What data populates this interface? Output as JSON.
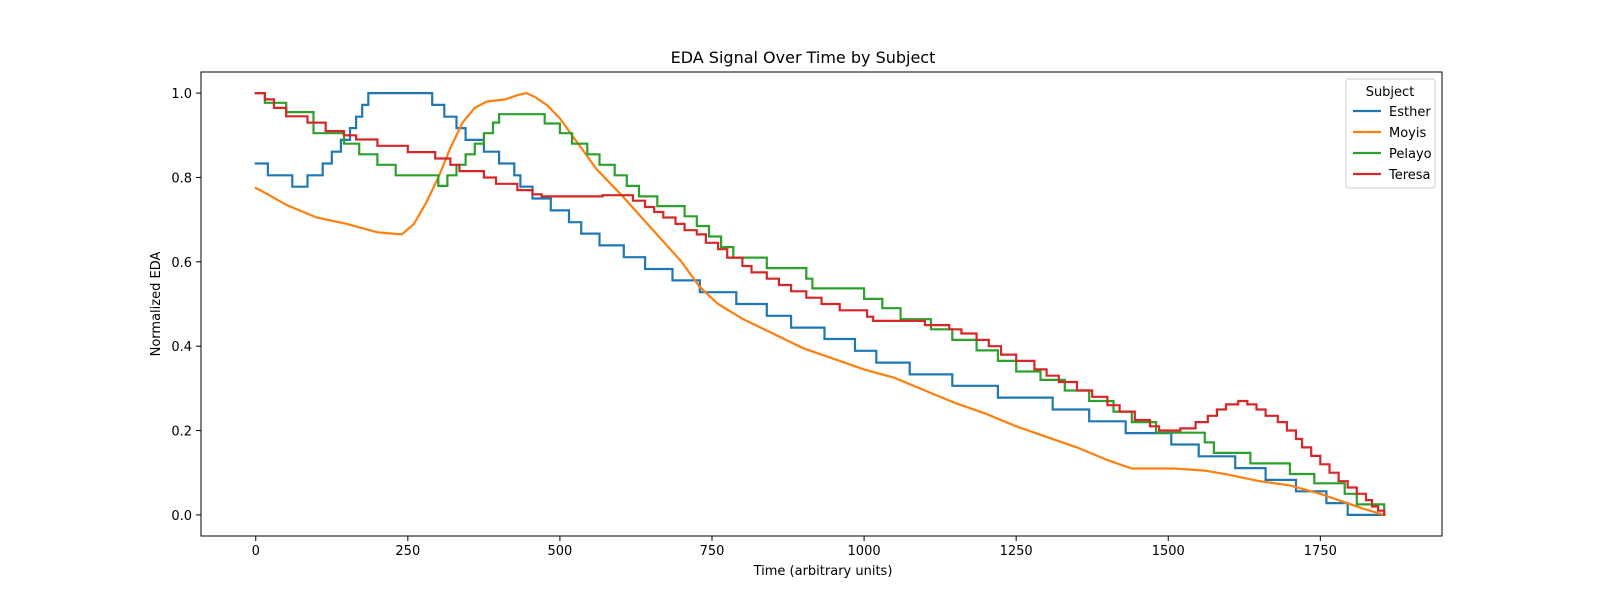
{
  "chart_data": {
    "type": "line",
    "title": "EDA Signal Over Time by Subject",
    "xlabel": "Time (arbitrary units)",
    "ylabel": "Normalized EDA",
    "xlim": [
      -90,
      1950
    ],
    "ylim": [
      -0.05,
      1.05
    ],
    "xticks": [
      0,
      250,
      500,
      750,
      1000,
      1250,
      1500,
      1750
    ],
    "yticks": [
      0.0,
      0.2,
      0.4,
      0.6,
      0.8,
      1.0
    ],
    "xtick_labels": [
      "0",
      "250",
      "500",
      "750",
      "1000",
      "1250",
      "1500",
      "1750"
    ],
    "ytick_labels": [
      "0.0",
      "0.2",
      "0.4",
      "0.6",
      "0.8",
      "1.0"
    ],
    "grid": false,
    "legend": {
      "title": "Subject",
      "placement": "top-right"
    },
    "series": [
      {
        "name": "Esther",
        "color": "#1f77b4",
        "step": true,
        "points": [
          [
            0,
            0.833
          ],
          [
            20,
            0.805
          ],
          [
            60,
            0.778
          ],
          [
            85,
            0.805
          ],
          [
            110,
            0.833
          ],
          [
            125,
            0.861
          ],
          [
            140,
            0.889
          ],
          [
            155,
            0.917
          ],
          [
            165,
            0.944
          ],
          [
            175,
            0.972
          ],
          [
            185,
            1.0
          ],
          [
            290,
            0.972
          ],
          [
            310,
            0.944
          ],
          [
            330,
            0.917
          ],
          [
            345,
            0.889
          ],
          [
            375,
            0.861
          ],
          [
            400,
            0.833
          ],
          [
            425,
            0.805
          ],
          [
            435,
            0.778
          ],
          [
            455,
            0.75
          ],
          [
            485,
            0.722
          ],
          [
            515,
            0.694
          ],
          [
            535,
            0.667
          ],
          [
            565,
            0.639
          ],
          [
            605,
            0.611
          ],
          [
            640,
            0.583
          ],
          [
            685,
            0.556
          ],
          [
            730,
            0.528
          ],
          [
            790,
            0.5
          ],
          [
            840,
            0.472
          ],
          [
            880,
            0.444
          ],
          [
            935,
            0.417
          ],
          [
            985,
            0.389
          ],
          [
            1020,
            0.361
          ],
          [
            1075,
            0.333
          ],
          [
            1145,
            0.306
          ],
          [
            1220,
            0.278
          ],
          [
            1310,
            0.25
          ],
          [
            1370,
            0.222
          ],
          [
            1430,
            0.194
          ],
          [
            1505,
            0.167
          ],
          [
            1550,
            0.139
          ],
          [
            1610,
            0.111
          ],
          [
            1660,
            0.083
          ],
          [
            1710,
            0.056
          ],
          [
            1760,
            0.028
          ],
          [
            1795,
            0.0
          ],
          [
            1855,
            0.0
          ]
        ]
      },
      {
        "name": "Moyis",
        "color": "#ff7f0e",
        "step": false,
        "points": [
          [
            0,
            0.775
          ],
          [
            20,
            0.76
          ],
          [
            50,
            0.735
          ],
          [
            100,
            0.705
          ],
          [
            150,
            0.69
          ],
          [
            200,
            0.67
          ],
          [
            240,
            0.665
          ],
          [
            260,
            0.69
          ],
          [
            280,
            0.74
          ],
          [
            300,
            0.8
          ],
          [
            320,
            0.87
          ],
          [
            340,
            0.93
          ],
          [
            360,
            0.965
          ],
          [
            380,
            0.98
          ],
          [
            410,
            0.985
          ],
          [
            430,
            0.995
          ],
          [
            445,
            1.0
          ],
          [
            460,
            0.99
          ],
          [
            480,
            0.97
          ],
          [
            500,
            0.94
          ],
          [
            520,
            0.9
          ],
          [
            540,
            0.86
          ],
          [
            560,
            0.82
          ],
          [
            600,
            0.76
          ],
          [
            650,
            0.68
          ],
          [
            700,
            0.6
          ],
          [
            730,
            0.54
          ],
          [
            760,
            0.5
          ],
          [
            800,
            0.465
          ],
          [
            850,
            0.43
          ],
          [
            900,
            0.395
          ],
          [
            950,
            0.37
          ],
          [
            1000,
            0.345
          ],
          [
            1050,
            0.325
          ],
          [
            1100,
            0.295
          ],
          [
            1150,
            0.265
          ],
          [
            1200,
            0.24
          ],
          [
            1250,
            0.21
          ],
          [
            1300,
            0.185
          ],
          [
            1350,
            0.16
          ],
          [
            1400,
            0.13
          ],
          [
            1440,
            0.11
          ],
          [
            1510,
            0.11
          ],
          [
            1560,
            0.105
          ],
          [
            1600,
            0.095
          ],
          [
            1650,
            0.08
          ],
          [
            1700,
            0.07
          ],
          [
            1750,
            0.05
          ],
          [
            1790,
            0.03
          ],
          [
            1820,
            0.015
          ],
          [
            1855,
            0.0
          ]
        ]
      },
      {
        "name": "Pelayo",
        "color": "#2ca02c",
        "step": true,
        "points": [
          [
            0,
            1.0
          ],
          [
            15,
            0.977
          ],
          [
            50,
            0.955
          ],
          [
            95,
            0.932
          ],
          [
            95,
            0.905
          ],
          [
            145,
            0.88
          ],
          [
            170,
            0.855
          ],
          [
            200,
            0.83
          ],
          [
            230,
            0.805
          ],
          [
            300,
            0.78
          ],
          [
            315,
            0.805
          ],
          [
            330,
            0.83
          ],
          [
            345,
            0.855
          ],
          [
            360,
            0.88
          ],
          [
            375,
            0.905
          ],
          [
            390,
            0.93
          ],
          [
            400,
            0.95
          ],
          [
            475,
            0.928
          ],
          [
            500,
            0.905
          ],
          [
            520,
            0.88
          ],
          [
            545,
            0.855
          ],
          [
            565,
            0.83
          ],
          [
            590,
            0.805
          ],
          [
            610,
            0.78
          ],
          [
            630,
            0.755
          ],
          [
            660,
            0.732
          ],
          [
            705,
            0.708
          ],
          [
            725,
            0.685
          ],
          [
            745,
            0.66
          ],
          [
            765,
            0.635
          ],
          [
            785,
            0.61
          ],
          [
            840,
            0.585
          ],
          [
            905,
            0.56
          ],
          [
            915,
            0.537
          ],
          [
            1000,
            0.512
          ],
          [
            1030,
            0.49
          ],
          [
            1060,
            0.464
          ],
          [
            1110,
            0.44
          ],
          [
            1145,
            0.415
          ],
          [
            1185,
            0.39
          ],
          [
            1220,
            0.365
          ],
          [
            1250,
            0.34
          ],
          [
            1290,
            0.32
          ],
          [
            1330,
            0.295
          ],
          [
            1370,
            0.27
          ],
          [
            1410,
            0.245
          ],
          [
            1440,
            0.22
          ],
          [
            1480,
            0.195
          ],
          [
            1560,
            0.172
          ],
          [
            1575,
            0.147
          ],
          [
            1635,
            0.122
          ],
          [
            1700,
            0.097
          ],
          [
            1740,
            0.075
          ],
          [
            1790,
            0.05
          ],
          [
            1810,
            0.025
          ],
          [
            1855,
            0.0
          ]
        ]
      },
      {
        "name": "Teresa",
        "color": "#d62728",
        "step": true,
        "points": [
          [
            0,
            1.0
          ],
          [
            15,
            0.985
          ],
          [
            30,
            0.965
          ],
          [
            50,
            0.945
          ],
          [
            85,
            0.93
          ],
          [
            115,
            0.91
          ],
          [
            145,
            0.9
          ],
          [
            165,
            0.89
          ],
          [
            200,
            0.875
          ],
          [
            250,
            0.86
          ],
          [
            295,
            0.845
          ],
          [
            320,
            0.83
          ],
          [
            335,
            0.815
          ],
          [
            375,
            0.8
          ],
          [
            395,
            0.785
          ],
          [
            430,
            0.77
          ],
          [
            455,
            0.76
          ],
          [
            470,
            0.755
          ],
          [
            570,
            0.758
          ],
          [
            620,
            0.745
          ],
          [
            640,
            0.73
          ],
          [
            655,
            0.718
          ],
          [
            670,
            0.705
          ],
          [
            690,
            0.69
          ],
          [
            705,
            0.675
          ],
          [
            725,
            0.665
          ],
          [
            740,
            0.645
          ],
          [
            760,
            0.63
          ],
          [
            775,
            0.61
          ],
          [
            800,
            0.59
          ],
          [
            815,
            0.575
          ],
          [
            840,
            0.56
          ],
          [
            860,
            0.545
          ],
          [
            880,
            0.53
          ],
          [
            905,
            0.515
          ],
          [
            930,
            0.5
          ],
          [
            960,
            0.485
          ],
          [
            1005,
            0.47
          ],
          [
            1015,
            0.46
          ],
          [
            1100,
            0.45
          ],
          [
            1140,
            0.44
          ],
          [
            1160,
            0.43
          ],
          [
            1185,
            0.415
          ],
          [
            1205,
            0.4
          ],
          [
            1225,
            0.38
          ],
          [
            1250,
            0.365
          ],
          [
            1280,
            0.345
          ],
          [
            1300,
            0.33
          ],
          [
            1320,
            0.315
          ],
          [
            1350,
            0.295
          ],
          [
            1375,
            0.28
          ],
          [
            1400,
            0.26
          ],
          [
            1420,
            0.245
          ],
          [
            1445,
            0.225
          ],
          [
            1470,
            0.21
          ],
          [
            1485,
            0.2
          ],
          [
            1520,
            0.205
          ],
          [
            1545,
            0.22
          ],
          [
            1565,
            0.235
          ],
          [
            1580,
            0.25
          ],
          [
            1595,
            0.262
          ],
          [
            1615,
            0.27
          ],
          [
            1630,
            0.262
          ],
          [
            1645,
            0.25
          ],
          [
            1660,
            0.235
          ],
          [
            1680,
            0.22
          ],
          [
            1695,
            0.2
          ],
          [
            1710,
            0.18
          ],
          [
            1720,
            0.16
          ],
          [
            1735,
            0.14
          ],
          [
            1750,
            0.12
          ],
          [
            1765,
            0.1
          ],
          [
            1780,
            0.08
          ],
          [
            1795,
            0.065
          ],
          [
            1810,
            0.05
          ],
          [
            1825,
            0.035
          ],
          [
            1835,
            0.02
          ],
          [
            1845,
            0.01
          ],
          [
            1855,
            0.0
          ]
        ]
      }
    ]
  }
}
